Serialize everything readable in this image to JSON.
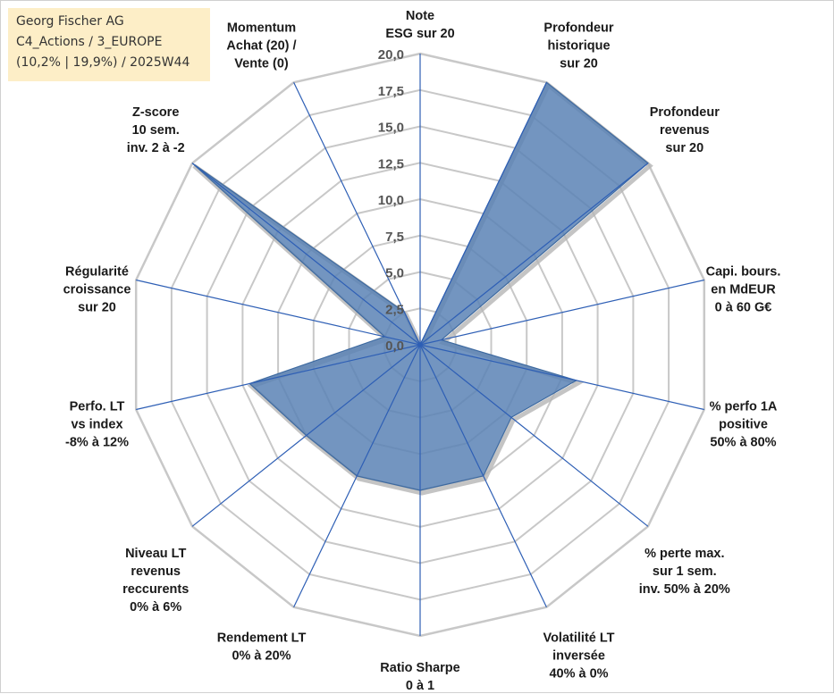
{
  "info": {
    "line1": "Georg Fischer AG",
    "line2": "C4_Actions / 3_EUROPE",
    "line3": "(10,2% | 19,9%) / 2025W44",
    "background": "#fdeec7"
  },
  "chart_data": {
    "type": "radar",
    "title": "",
    "axes": [
      {
        "label": [
          "Note",
          "ESG sur 20"
        ],
        "value": 0
      },
      {
        "label": [
          "Profondeur",
          "historique",
          "sur 20"
        ],
        "value": 20
      },
      {
        "label": [
          "Profondeur",
          "revenus",
          "sur 20"
        ],
        "value": 20
      },
      {
        "label": [
          "Capi. bours.",
          "en MdEUR",
          "0 à 60 G€"
        ],
        "value": 1.5
      },
      {
        "label": [
          "% perfo 1A",
          "positive",
          "50% à 80%"
        ],
        "value": 11
      },
      {
        "label": [
          "% perte max.",
          "sur 1 sem.",
          "inv. 50% à 20%"
        ],
        "value": 8
      },
      {
        "label": [
          "Volatilité LT",
          "inversée",
          "40% à 0%"
        ],
        "value": 10
      },
      {
        "label": [
          "Ratio Sharpe",
          "0 à 1"
        ],
        "value": 10
      },
      {
        "label": [
          "Rendement LT",
          "0% à 20%"
        ],
        "value": 10
      },
      {
        "label": [
          "Niveau LT",
          "revenus",
          "reccurents",
          "0% à 6%"
        ],
        "value": 10
      },
      {
        "label": [
          "Perfo. LT",
          "vs index",
          "-8% à 12%"
        ],
        "value": 12
      },
      {
        "label": [
          "Régularité",
          "croissance",
          "sur 20"
        ],
        "value": 2.5
      },
      {
        "label": [
          "Z-score",
          "10 sem.",
          "inv. 2 à -2"
        ],
        "value": 20
      },
      {
        "label": [
          "Momentum",
          "Achat (20) /",
          "Vente (0)"
        ],
        "value": 2.5
      }
    ],
    "rlim": [
      0,
      20
    ],
    "ticks": [
      "0,0",
      "2,5",
      "5,0",
      "7,5",
      "10,0",
      "12,5",
      "15,0",
      "17,5",
      "20,0"
    ],
    "grid": true,
    "colors": {
      "fill": "#5b83b5",
      "stroke": "#3e6aa0",
      "grid": "#c8c8c8",
      "spoke": "#2e5fb5"
    }
  }
}
